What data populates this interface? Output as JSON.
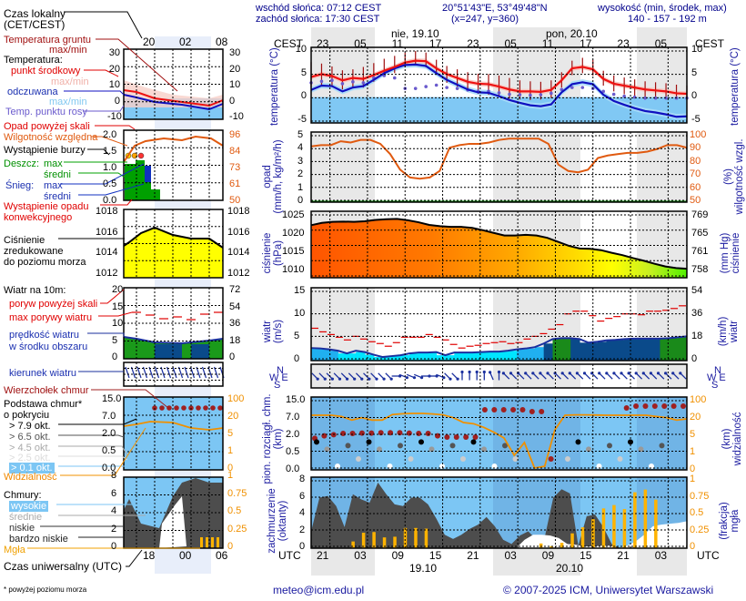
{
  "header": {
    "sunrise": "wschód słońca: 07:12 CEST",
    "sunset": "zachód słońca: 17:30 CEST",
    "coords": "20°51'43\"E, 53°49'48\"N",
    "grid": "(x=247,  y=360)",
    "elev_title": "wysokość (min, środek, max)",
    "elev_values": "140 - 157 - 192 m"
  },
  "legend": {
    "local_time": "Czas lokalny",
    "local_time2": "(CET/CEST)",
    "ground_temp": "Temperatura gruntu",
    "ground_temp2": "max/min",
    "temperature": "Temperatura:",
    "mid_point": "punkt środkowy",
    "maxmin1": "max/min",
    "perceived": "odczuwana",
    "maxmin2": "max/min",
    "dew_point": "Temp. punktu rosy",
    "precip_over": "Opad powyżej skali",
    "humidity": "Wilgotność względna",
    "storm": "Wystąpienie burzy",
    "rain": "Deszcz:",
    "rain_max": "max",
    "rain_avg": "średni",
    "snow": "Śnieg:",
    "snow_max": "max",
    "snow_avg": "średni",
    "convective": "Wystąpienie opadu",
    "convective2": "konwekcyjnego",
    "pressure": "Ciśnienie",
    "pressure2": "zredukowane",
    "pressure3": "do poziomu morza",
    "wind10": "Wiatr na 10m:",
    "gust_over": "poryw powyżej skali",
    "gust_max": "max porywy wiatru",
    "wind_speed": "prędkość wiatru",
    "wind_speed2": "w środku obszaru",
    "wind_dir": "kierunek wiatru",
    "cloud_top": "Wierzchołek chmur",
    "cloud_base": "Podstawa chmur*",
    "cloud_base2": "o pokryciu",
    "okt79": "> 7.9 okt.",
    "okt65": "> 6.5 okt.",
    "okt45": "> 4.5 okt.",
    "okt25": "> 2.5 okt.",
    "okt01": "> 0.1 okt.",
    "visibility": "Widzialność",
    "clouds": "Chmury:",
    "high": "wysokie",
    "mid": "średnie",
    "low": "niskie",
    "vlow": "bardzo niskie",
    "fog": "Mgła",
    "utc": "Czas uniwersalny (UTC)",
    "footnote": "* powyżej poziomu morza",
    "mini_top_ticks": [
      "20",
      "02",
      "08"
    ],
    "mini_bottom_ticks": [
      "18",
      "00",
      "06"
    ],
    "mini_temp_left": [
      "30",
      "20",
      "10",
      "0",
      "-10"
    ],
    "mini_temp_right": [
      "30",
      "20",
      "10",
      "0",
      "-10"
    ],
    "mini_precip_left": [
      "2.0",
      "1.5",
      "1.0",
      "0.5",
      "0.0"
    ],
    "mini_precip_right": [
      "96",
      "84",
      "73",
      "61",
      "50"
    ],
    "mini_press_left": [
      "1018",
      "1016",
      "1014",
      "1012"
    ],
    "mini_press_right": [
      "1018",
      "1016",
      "1014",
      "1012"
    ],
    "mini_wind_left": [
      "20",
      "15",
      "10",
      "5",
      "0"
    ],
    "mini_wind_right": [
      "72",
      "54",
      "36",
      "18",
      "0"
    ],
    "mini_cloud_left": [
      "15.0",
      "7.0",
      "2.0",
      "0.5",
      "0.0"
    ],
    "mini_cloud_right": [
      "100",
      "20",
      "5",
      "1",
      "0"
    ],
    "mini_cov_left": [
      "8",
      "6",
      "4",
      "2",
      "0"
    ],
    "mini_cov_right": [
      "1",
      "0.75",
      "0.5",
      "0.25",
      "0"
    ]
  },
  "time_axis": {
    "tz_left": "CEST",
    "tz_right": "CEST",
    "day1": "nie, 19.10",
    "day2": "pon, 20.10",
    "cest_ticks": [
      "23",
      "05",
      "11",
      "17",
      "23",
      "05",
      "11",
      "17",
      "23",
      "05"
    ],
    "utc_left": "UTC",
    "utc_right": "UTC",
    "utc_ticks": [
      "21",
      "03",
      "09",
      "15",
      "21",
      "03",
      "09",
      "15",
      "21",
      "03"
    ],
    "date1": "19.10",
    "date2": "20.10"
  },
  "footer": {
    "email": "meteo@icm.edu.pl",
    "copyright": "© 2007-2025 ICM, Uniwersytet Warszawski"
  },
  "chart_data": [
    {
      "type": "line",
      "title": "temperatura (°C)",
      "ylabel": "temperatura (°C)",
      "ylim": [
        -5,
        10
      ],
      "yticks": [
        "10",
        "5",
        "0",
        "-5"
      ],
      "x_hours": "CEST 20:00 Sat 18.10 to ~07:00 Tue 21.10, 3-hour steps",
      "series": [
        {
          "name": "punkt środkowy",
          "color": "#ee1111",
          "values": [
            4.2,
            4.8,
            4.4,
            3.5,
            4.0,
            3.8,
            4.6,
            5.5,
            6.3,
            7.2,
            7.6,
            7.5,
            6.0,
            4.8,
            4.0,
            3.2,
            2.8,
            2.7,
            2.2,
            1.6,
            1.2,
            1.2,
            1.1,
            1.5,
            3.5,
            6.0,
            6.3,
            5.8,
            3.8,
            2.8,
            2.4,
            2.0,
            1.6,
            1.4,
            1.2,
            0.8,
            0.7
          ]
        },
        {
          "name": "odczuwana",
          "color": "#1010c0",
          "values": [
            1.5,
            2.4,
            2.3,
            1.2,
            2.0,
            2.3,
            3.6,
            5.0,
            6.0,
            6.7,
            6.8,
            6.5,
            5.0,
            3.6,
            2.6,
            1.6,
            1.0,
            0.9,
            0.2,
            -0.6,
            -1.2,
            -1.7,
            -1.9,
            -1.5,
            1.0,
            2.7,
            3.1,
            2.7,
            0.5,
            -0.8,
            -1.6,
            -2.3,
            -2.9,
            -3.2,
            -3.6,
            -4.1,
            -4.0
          ]
        },
        {
          "name": "Temp. punktu rosy",
          "color": "#7060d0",
          "values": [
            3.0,
            3.3,
            3.5,
            2.8,
            3.2,
            3.0,
            4.0,
            4.5,
            4.0,
            1.8,
            1.8,
            2.2,
            2.5,
            2.0,
            1.8,
            1.5,
            1.2,
            1.2,
            0.9,
            0.6,
            0.5,
            0.4,
            0.5,
            0.8,
            1.6,
            2.0,
            2.0,
            1.8,
            1.2,
            0.6,
            0.2,
            0.0,
            -0.2,
            -0.2,
            -0.2,
            -0.2,
            -0.2
          ]
        }
      ],
      "ground_temp_max": [
        7.3,
        7.0,
        6.4,
        5.6,
        5.8,
        6.3,
        7.1,
        8.0,
        8.6,
        9.3,
        9.6,
        9.3,
        7.8,
        6.5,
        5.8,
        5.2,
        4.9,
        4.8,
        4.5,
        4.0,
        3.5,
        3.3,
        3.2,
        3.5,
        5.2,
        7.6,
        8.2,
        7.8,
        5.5,
        4.5,
        4.1,
        3.7,
        3.3,
        3.1,
        2.9,
        2.6,
        2.4
      ],
      "ground_temp_min": [
        2.0,
        2.4,
        2.2,
        1.6,
        2.0,
        2.0,
        3.2,
        4.2,
        5.0,
        6.2,
        6.6,
        6.2,
        4.8,
        3.0,
        2.2,
        1.4,
        0.7,
        0.5,
        0.1,
        -0.3,
        -0.5,
        -0.6,
        -0.5,
        -0.2,
        2.0,
        4.6,
        5.0,
        4.5,
        2.4,
        1.2,
        0.6,
        0.3,
        0.0,
        -0.2,
        -0.4,
        -0.5,
        -0.5
      ]
    },
    {
      "type": "line",
      "title": "opad (mm/h, kg/m²/h) / wilgotność wzgl. (%)",
      "ylabel": "opad (mm/h, kg/m²/h)",
      "ylim": [
        0,
        5
      ],
      "yticks": [
        "5",
        "4",
        "3",
        "2",
        "1",
        "0"
      ],
      "y2label": "wilgotność wzgl. (%)",
      "y2lim": [
        50,
        100
      ],
      "y2ticks": [
        "100",
        "90",
        "80",
        "70",
        "60",
        "50"
      ],
      "series": [
        {
          "name": "Wilgotność względna (%)",
          "color": "#e05a10",
          "values": [
            91,
            92,
            92,
            95,
            94,
            96,
            96,
            93,
            85,
            73,
            67,
            66,
            67,
            72,
            90,
            92,
            93,
            93,
            94,
            96,
            97,
            97,
            97,
            97,
            93,
            77,
            72,
            71,
            73,
            82,
            84,
            85,
            86,
            86,
            87,
            89,
            92,
            92,
            90
          ]
        },
        {
          "name": "Opad (mm/h)",
          "color": "#008000",
          "values": [
            0,
            0,
            0,
            0,
            0,
            0,
            0,
            0,
            0,
            0,
            0,
            0,
            0,
            0,
            0,
            0,
            0,
            0,
            0,
            0,
            0,
            0,
            0,
            0,
            0,
            0,
            0,
            0,
            0,
            0,
            0,
            0,
            0,
            0,
            0,
            0,
            0,
            0,
            0
          ]
        }
      ]
    },
    {
      "type": "area",
      "title": "ciśnienie (hPa)",
      "ylabel": "ciśnienie (hPa)",
      "ylim": [
        1006.5,
        1026.5
      ],
      "yticks": [
        "1025",
        "1020",
        "1015",
        "1010"
      ],
      "y2label": "ciśnienie (mm Hg)",
      "y2ticks": [
        "769",
        "765",
        "761",
        "758"
      ],
      "series": [
        {
          "name": "Ciśnienie zredukowane do poziomu morza",
          "color": "#000000",
          "values": [
            1022.3,
            1023.0,
            1023.3,
            1023.4,
            1023.3,
            1023.5,
            1023.9,
            1024.1,
            1024.2,
            1023.8,
            1023.2,
            1022.4,
            1022.0,
            1021.8,
            1021.8,
            1021.5,
            1020.8,
            1020.0,
            1019.2,
            1019.2,
            1019.4,
            1019.2,
            1018.5,
            1017.3,
            1016.1,
            1015.3,
            1015.2,
            1014.8,
            1014.0,
            1013.3,
            1012.4,
            1011.6,
            1010.7,
            1009.9,
            1009.4,
            1009.2
          ]
        }
      ]
    },
    {
      "type": "line",
      "title": "wiatr (m/s)",
      "ylabel": "wiatr (m/s)",
      "ylim": [
        0,
        15
      ],
      "yticks": [
        "15",
        "10",
        "5",
        "0"
      ],
      "y2label": "wiatr (km/h)",
      "y2ticks": [
        "54",
        "36",
        "18",
        "0"
      ],
      "series": [
        {
          "name": "max porywy wiatru (m/s)",
          "color": "#e00000",
          "values": [
            7.2,
            6.4,
            5.8,
            5.2,
            4.6,
            5.4,
            4.8,
            4.2,
            3.8,
            3.2,
            4.0,
            5.2,
            5.2,
            5.2,
            5.8,
            5.2,
            4.6,
            3.6,
            2.8,
            3.2,
            3.4,
            3.8,
            4.0,
            4.2,
            3.8,
            4.0,
            4.8,
            5.4,
            6.0,
            7.0,
            8.0,
            10.4,
            11.0,
            11.0,
            10.0,
            8.8,
            9.4,
            9.8,
            10.4,
            10.4,
            10.2,
            11.0,
            11.0,
            11.2,
            11.6,
            12.2
          ]
        },
        {
          "name": "prędkość wiatru w środku obszaru (m/s)",
          "color": "#1a2f9e",
          "values": [
            2.8,
            2.7,
            2.5,
            2.2,
            1.6,
            2.2,
            1.9,
            1.3,
            0.8,
            1.0,
            1.2,
            1.6,
            1.8,
            1.8,
            1.9,
            1.2,
            1.8,
            1.8,
            1.8,
            1.9,
            2.0,
            2.0,
            2.2,
            2.5,
            2.7,
            3.0,
            3.8,
            4.8,
            5.0,
            5.0,
            4.8,
            4.0,
            4.2,
            4.5,
            4.6,
            4.8,
            4.9,
            4.9,
            4.9,
            4.9,
            5.0,
            5.2,
            5.4
          ]
        }
      ]
    },
    {
      "type": "scatter",
      "title": "kierunek wiatru",
      "description": "Wind direction arrows: NW winds (pointing SE) early, turning W/WNW mid period, then S/SE winds (arrows pointing N/NW) from ~11 CEST 19.10 onward",
      "direction_sequence": [
        "NW",
        "NW",
        "NW",
        "NW",
        "NW",
        "NW",
        "NW",
        "NW",
        "NW",
        "NW",
        "NW",
        "W",
        "WNW",
        "WNW",
        "WNW",
        "W",
        "W",
        "WNW",
        "NW",
        "NW",
        "S",
        "S",
        "S",
        "S",
        "SSE",
        "S",
        "SE",
        "SE",
        "SE",
        "SE",
        "SE",
        "SE",
        "SE",
        "SE",
        "SE",
        "SE",
        "SE",
        "SE",
        "SE",
        "SE",
        "SE",
        "SE",
        "SE",
        "SE",
        "SE",
        "SE",
        "SE",
        "SE",
        "SE",
        "SE",
        "SE"
      ]
    },
    {
      "type": "scatter",
      "title": "pion. rozciągł. chm. (km) / widzialność (km)",
      "ylabel": "pion. rozciągł. chm. (km)",
      "yticks": [
        "15.0",
        "7.0",
        "2.0",
        "0.5",
        "0.0"
      ],
      "y2label": "widzialność (km)",
      "y2ticks": [
        "100",
        "20",
        "5",
        "1",
        "0"
      ],
      "series": [
        {
          "name": "Widzialność (km)",
          "color": "#f09000",
          "values": [
            20,
            20,
            20,
            19,
            16,
            18,
            16,
            16,
            24,
            28,
            30,
            30,
            27,
            22,
            18,
            14,
            13,
            10,
            6,
            4,
            0.8,
            3,
            0.1,
            0.2,
            8,
            20,
            22,
            22,
            21,
            20,
            20,
            20,
            20,
            20,
            19,
            18,
            16,
            17
          ]
        },
        {
          "name": "Wierzchołek chmur (km)",
          "color": "#a02020",
          "values": [
            1.6,
            1.8,
            1.9,
            2.0,
            2.0,
            2.1,
            2.1,
            2.2,
            2.2,
            2.2,
            2.1,
            2.0,
            2.0,
            1.8,
            1.7,
            1.7,
            1.7,
            1.7,
            10,
            10,
            10,
            10,
            10,
            9,
            9,
            0.3,
            null,
            null,
            null,
            null,
            null,
            null,
            null,
            11,
            12,
            12,
            12,
            12,
            12,
            12
          ]
        }
      ]
    },
    {
      "type": "area",
      "title": "zachmurzenie (oktanty) / mgła (frakcja)",
      "ylabel": "zachmurzenie (oktanty)",
      "ylim": [
        0,
        8
      ],
      "yticks": [
        "8",
        "6",
        "4",
        "2",
        "0"
      ],
      "y2label": "mgła (frakcja)",
      "y2lim": [
        0,
        1
      ],
      "y2ticks": [
        "1",
        "0.75",
        "0.5",
        "0.25",
        "0"
      ],
      "series": [
        {
          "name": "niskie (oktanty)",
          "color": "#505050",
          "values": [
            2,
            6,
            6.2,
            5,
            2.5,
            6.4,
            5.8,
            5.4,
            7.8,
            6.4,
            5.2,
            5,
            6,
            6,
            5.2,
            3.5,
            1.6,
            1.1,
            1.6,
            2.3,
            2.8,
            3.7,
            2.6,
            1.0,
            0.5,
            1.5,
            2.0,
            1.0,
            1.4,
            6.0,
            7.0,
            6.5,
            0.3,
            3.8,
            4.0,
            2.5,
            0.5,
            0,
            0,
            0,
            0,
            0,
            0,
            0,
            0.3,
            0.2
          ]
        },
        {
          "name": "wysokie (oktanty)",
          "color": "#ffffff",
          "values": [
            0,
            0,
            0,
            0,
            0,
            0,
            0,
            0,
            0,
            0,
            0,
            0,
            0,
            0,
            0,
            0,
            0,
            0,
            0,
            0,
            0,
            0,
            0,
            0,
            0,
            1.0,
            1.6,
            1.6,
            1.5,
            1.2,
            0.5,
            0.4,
            0.2,
            0.2,
            0.3,
            0.3,
            0,
            0.3,
            0.8,
            1.6,
            2.6,
            2.8,
            2.9,
            3.0,
            3.2
          ]
        },
        {
          "name": "Mgła (frakcja)",
          "color": "#ffb300",
          "values": [
            0,
            0,
            0,
            0,
            0.1,
            0.23,
            0.24,
            0.16,
            0.17,
            0.3,
            0.3,
            0.29,
            0,
            0,
            0,
            0,
            0,
            0,
            0,
            0,
            0,
            0,
            0.07,
            0.03,
            0.08,
            0.22,
            0.31,
            0.43,
            0.59,
            0.64,
            0.58,
            0.83,
            0.87,
            0.72,
            0,
            0,
            0
          ]
        }
      ]
    }
  ]
}
